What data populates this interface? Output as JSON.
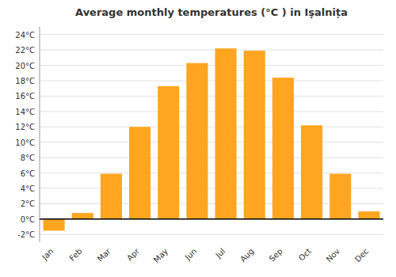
{
  "chart_data": {
    "type": "bar",
    "title": "Average monthly temperatures (°C ) in Işalnița",
    "categories": [
      "Jan",
      "Feb",
      "Mar",
      "Apr",
      "May",
      "Jun",
      "Jul",
      "Aug",
      "Sep",
      "Oct",
      "Nov",
      "Dec"
    ],
    "values": [
      -1.5,
      0.8,
      5.9,
      12.0,
      17.3,
      20.3,
      22.2,
      21.9,
      18.4,
      12.2,
      5.9,
      1.0
    ],
    "color": "#FFA520",
    "ylim": [
      -3,
      25
    ],
    "yticks": [
      {
        "value": -2,
        "label": "-2°C"
      },
      {
        "value": 0,
        "label": "0°C"
      },
      {
        "value": 2,
        "label": "2°C"
      },
      {
        "value": 4,
        "label": "4°C"
      },
      {
        "value": 6,
        "label": "6°C"
      },
      {
        "value": 8,
        "label": "8°C"
      },
      {
        "value": 10,
        "label": "10°C"
      },
      {
        "value": 12,
        "label": "12°C"
      },
      {
        "value": 14,
        "label": "14°C"
      },
      {
        "value": 16,
        "label": "16°C"
      },
      {
        "value": 18,
        "label": "18°C"
      },
      {
        "value": 20,
        "label": "20°C"
      },
      {
        "value": 22,
        "label": "22°C"
      },
      {
        "value": 24,
        "label": "24°C"
      }
    ],
    "grid": true
  }
}
